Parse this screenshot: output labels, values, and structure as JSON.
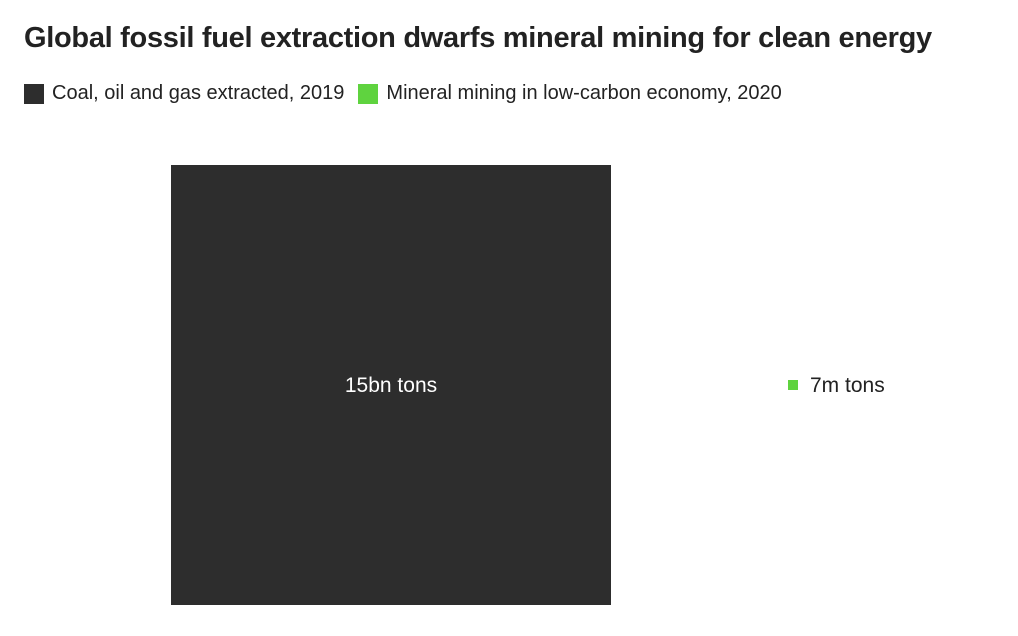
{
  "title": "Global fossil fuel extraction dwarfs mineral mining for clean energy",
  "chart_data": {
    "type": "area",
    "title": "Global fossil fuel extraction dwarfs mineral mining for clean energy",
    "legend_placement": "top-left",
    "series": [
      {
        "name": "Coal, oil and gas extracted, 2019",
        "value": 15000000000,
        "unit": "tons",
        "label": "15bn tons",
        "color": "#2d2d2d",
        "label_color": "#ffffff"
      },
      {
        "name": "Mineral mining in low-carbon economy, 2020",
        "value": 7000000,
        "unit": "tons",
        "label": "7m tons",
        "color": "#5fd33f",
        "label_color": "#222222"
      }
    ]
  }
}
